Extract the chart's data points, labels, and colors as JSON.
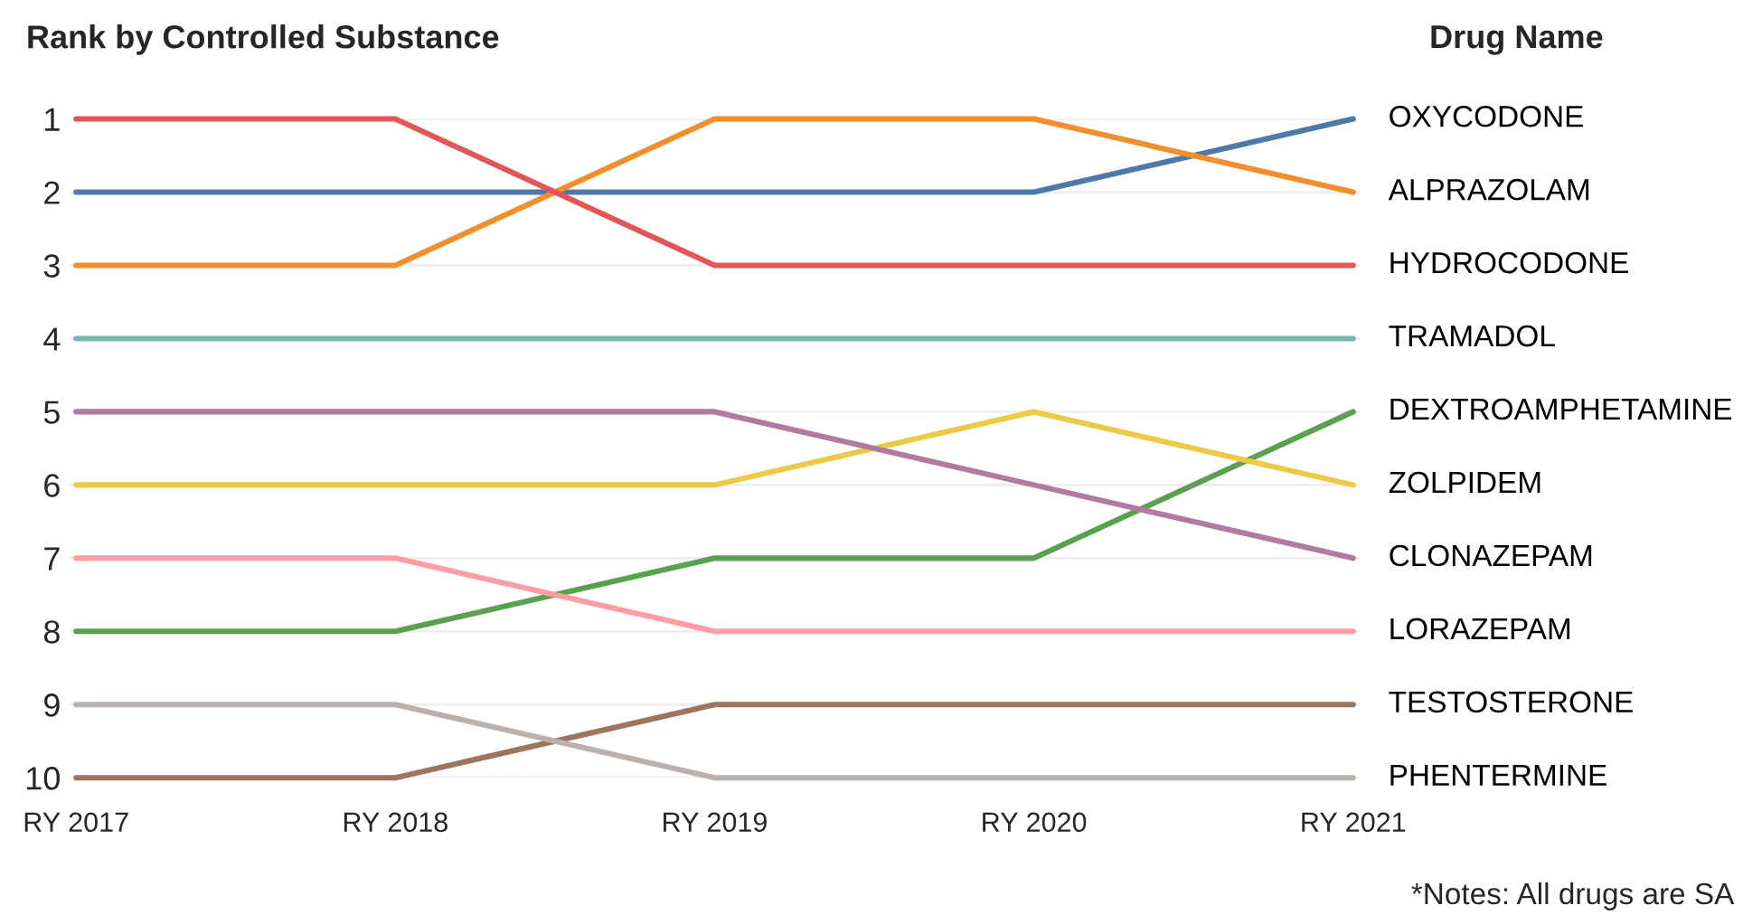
{
  "chart_data": {
    "type": "line",
    "title": "Rank by Controlled Substance",
    "legend_title": "Drug Name",
    "categories": [
      "RY 2017",
      "RY 2018",
      "RY 2019",
      "RY 2020",
      "RY 2021"
    ],
    "ylim": [
      10,
      1
    ],
    "yticks": [
      1,
      2,
      3,
      4,
      5,
      6,
      7,
      8,
      9,
      10
    ],
    "grid": "y",
    "marker": "none",
    "line_style": "solid",
    "legend": false,
    "series": [
      {
        "name": "OXYCODONE",
        "color": "#4e79a7",
        "values": [
          2,
          2,
          2,
          2,
          1
        ]
      },
      {
        "name": "ALPRAZOLAM",
        "color": "#f28e2b",
        "values": [
          3,
          3,
          1,
          1,
          2
        ]
      },
      {
        "name": "HYDROCODONE",
        "color": "#e15759",
        "values": [
          1,
          1,
          3,
          3,
          3
        ]
      },
      {
        "name": "TRAMADOL",
        "color": "#76b7b2",
        "values": [
          4,
          4,
          4,
          4,
          4
        ]
      },
      {
        "name": "DEXTROAMPHETAMINE",
        "color": "#59a14f",
        "values": [
          8,
          8,
          7,
          7,
          5
        ]
      },
      {
        "name": "ZOLPIDEM",
        "color": "#edc948",
        "values": [
          6,
          6,
          6,
          5,
          6
        ]
      },
      {
        "name": "CLONAZEPAM",
        "color": "#b07aa1",
        "values": [
          5,
          5,
          5,
          6,
          7
        ]
      },
      {
        "name": "LORAZEPAM",
        "color": "#ff9da7",
        "values": [
          7,
          7,
          8,
          8,
          8
        ]
      },
      {
        "name": "TESTOSTERONE",
        "color": "#9c755f",
        "values": [
          10,
          10,
          9,
          9,
          9
        ]
      },
      {
        "name": "PHENTERMINE",
        "color": "#bab0ac",
        "values": [
          9,
          9,
          10,
          10,
          10
        ]
      }
    ],
    "annotations": [
      "*Notes: All drugs are SA"
    ]
  }
}
